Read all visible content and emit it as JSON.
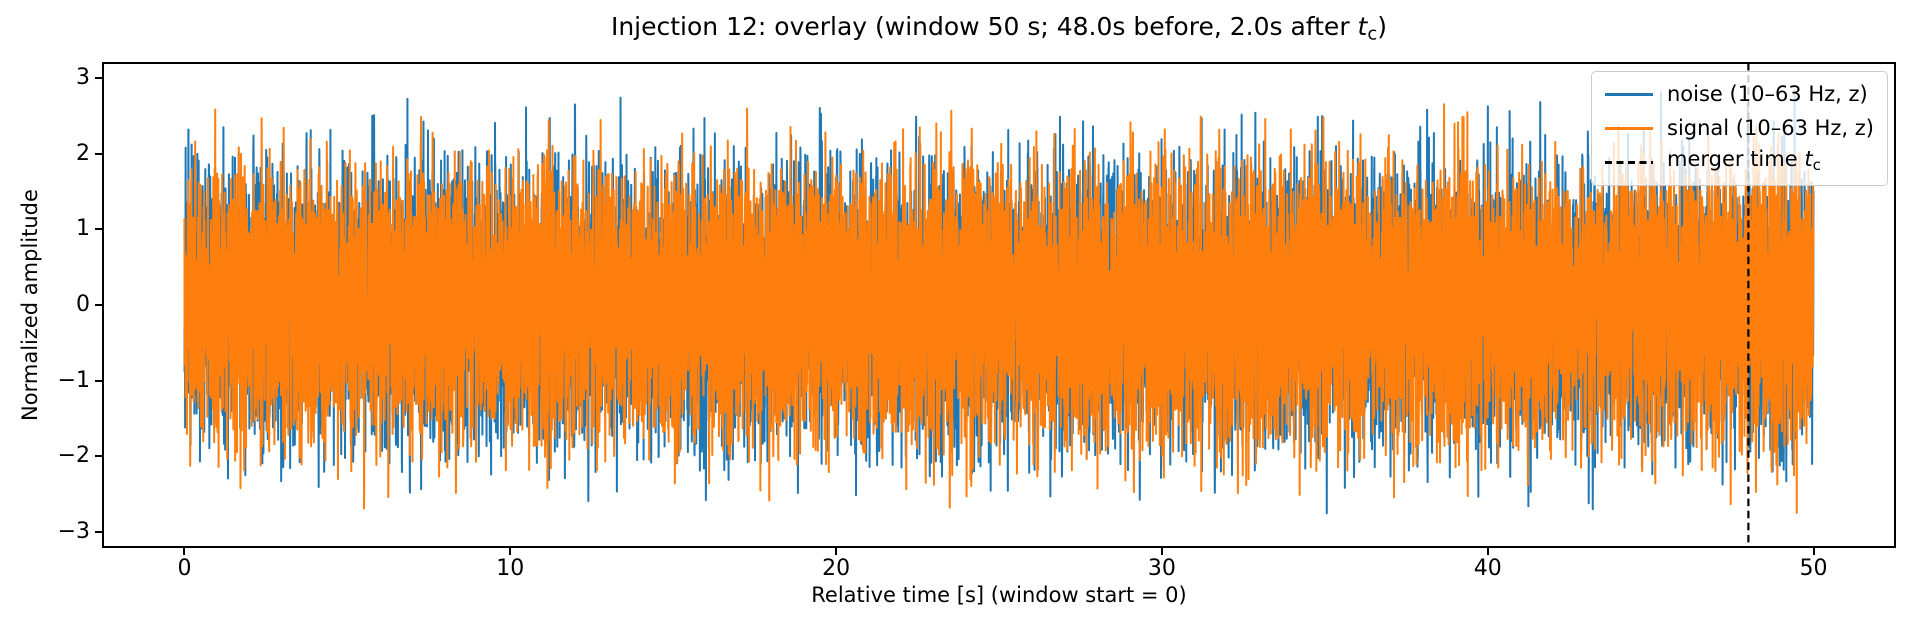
{
  "chart_data": {
    "type": "line",
    "title": {
      "pre": "Injection 12: overlay (window 50 s; 48.0s before, 2.0s after ",
      "var": "t",
      "sub": "c",
      "post": ")"
    },
    "xlabel": "Relative time [s] (window start = 0)",
    "ylabel": "Normalized amplitude",
    "xlim": [
      -2.5,
      52.5
    ],
    "ylim": [
      -3.2,
      3.2
    ],
    "xticks": [
      0,
      10,
      20,
      30,
      40,
      50
    ],
    "yticks": [
      3,
      2,
      1,
      0,
      -1,
      -2,
      -3
    ],
    "grid": false,
    "legend_position": "upper right",
    "series": [
      {
        "name": "noise (10–63 Hz, z)",
        "color": "#1f77b4",
        "line_style": "solid",
        "kind": "band-limited gaussian noise, z-scored",
        "band_hz": [
          10,
          63
        ],
        "t_start": 0,
        "t_end": 50,
        "sample_rate_hz": 250,
        "seed": 20121,
        "clip_scale": 3.6,
        "observed_peak_abs": 2.93
      },
      {
        "name": "signal (10–63 Hz, z)",
        "color": "#ff7f0e",
        "line_style": "solid",
        "kind": "band-limited gaussian noise, z-scored",
        "band_hz": [
          10,
          63
        ],
        "t_start": 0,
        "t_end": 50,
        "sample_rate_hz": 250,
        "seed": 77391,
        "clip_scale": 3.35,
        "observed_peak_abs": 2.8
      }
    ],
    "annotations": [
      {
        "type": "vline",
        "x": 48.0,
        "color": "#000000",
        "line_style": "dashed",
        "label": {
          "pre": "merger time ",
          "var": "t",
          "sub": "c"
        }
      }
    ]
  }
}
